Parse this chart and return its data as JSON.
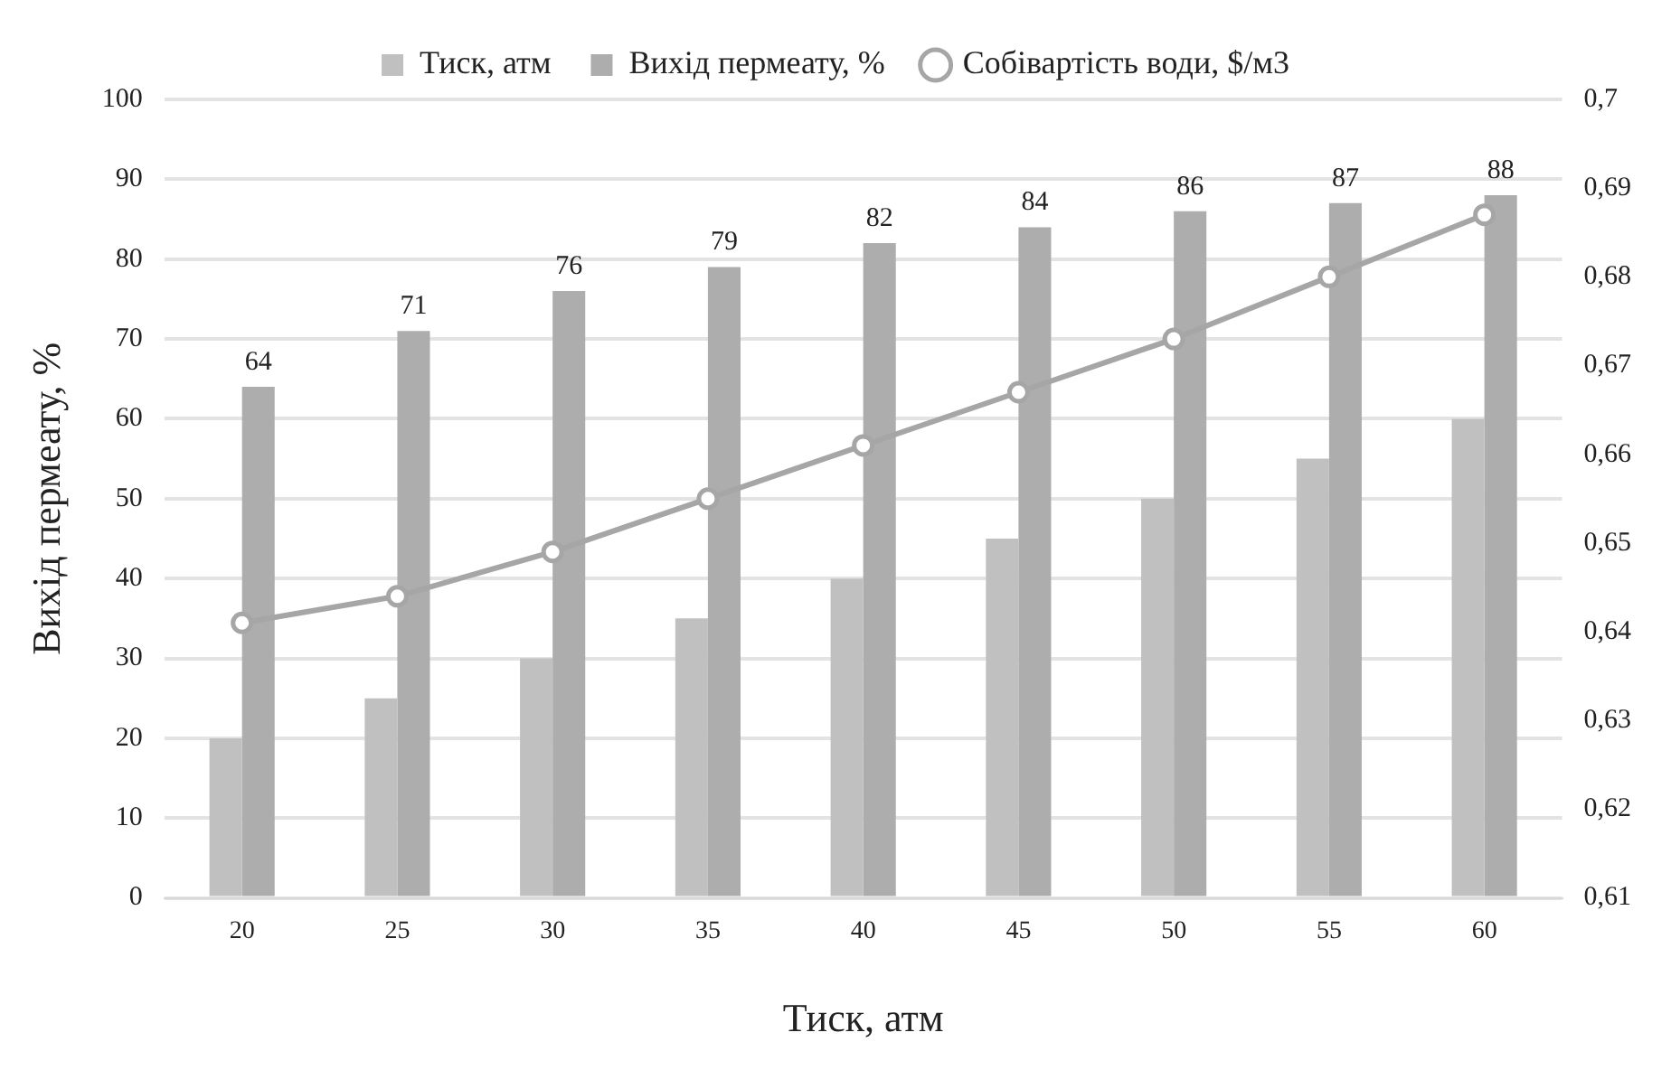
{
  "chart_data": {
    "type": "bar",
    "xlabel": "Тиск, атм",
    "ylabel": "Вихід пермеату, %",
    "categories": [
      "20",
      "25",
      "30",
      "35",
      "40",
      "45",
      "50",
      "55",
      "60"
    ],
    "series": [
      {
        "name": "Тиск, атм",
        "color": "#c0c0c0",
        "values": [
          20,
          25,
          30,
          35,
          40,
          45,
          50,
          55,
          60
        ]
      },
      {
        "name": "Вихід пермеату, %",
        "color": "#adadad",
        "values": [
          64,
          71,
          76,
          79,
          82,
          84,
          86,
          87,
          88
        ],
        "value_labels": [
          "64",
          "71",
          "76",
          "79",
          "82",
          "84",
          "86",
          "87",
          "88"
        ]
      },
      {
        "name": "Собівартість води, $/м3",
        "type": "line",
        "axis": "y2",
        "color": "#a6a6a6",
        "marker": "circle",
        "values": [
          0.641,
          0.644,
          0.649,
          0.655,
          0.661,
          0.667,
          0.673,
          0.68,
          0.687
        ]
      }
    ],
    "ylim": [
      0,
      100
    ],
    "yticks": [
      0,
      10,
      20,
      30,
      40,
      50,
      60,
      70,
      80,
      90,
      100
    ],
    "y2lim": [
      0.61,
      0.7
    ],
    "y2ticks": [
      {
        "value": 0.61,
        "label": "0,61"
      },
      {
        "value": 0.62,
        "label": "0,62"
      },
      {
        "value": 0.63,
        "label": "0,63"
      },
      {
        "value": 0.64,
        "label": "0,64"
      },
      {
        "value": 0.65,
        "label": "0,65"
      },
      {
        "value": 0.66,
        "label": "0,66"
      },
      {
        "value": 0.67,
        "label": "0,67"
      },
      {
        "value": 0.68,
        "label": "0,68"
      },
      {
        "value": 0.69,
        "label": "0,69"
      },
      {
        "value": 0.7,
        "label": "0,7"
      }
    ],
    "grid": "y",
    "legend": "top"
  }
}
